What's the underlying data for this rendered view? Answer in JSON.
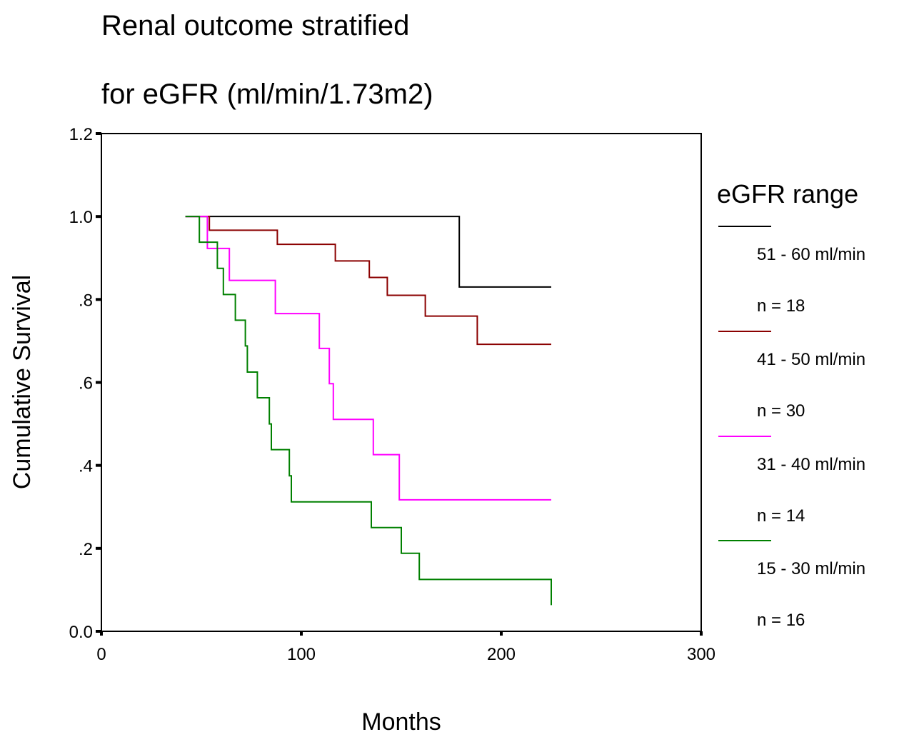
{
  "chart_data": {
    "type": "line",
    "title_lines": [
      "Renal outcome stratified",
      "for eGFR (ml/min/1.73m2)"
    ],
    "xlabel": "Months",
    "ylabel": "Cumulative Survival",
    "xlim": [
      0,
      300
    ],
    "ylim": [
      0,
      1.2
    ],
    "x_ticks": [
      0,
      100,
      200,
      300
    ],
    "x_tick_labels": [
      "0",
      "100",
      "200",
      "300"
    ],
    "y_ticks": [
      0,
      0.2,
      0.4,
      0.6,
      0.8,
      1.0,
      1.2
    ],
    "y_tick_labels": [
      "0.0",
      ".2",
      ".4",
      ".6",
      ".8",
      "1.0",
      "1.2"
    ],
    "grid": false,
    "legend": {
      "title": "eGFR range",
      "placement": "right",
      "entries": [
        {
          "label": "51 - 60 ml/min",
          "n_label": "n = 18",
          "color": "#000000"
        },
        {
          "label": "41 - 50 ml/min",
          "n_label": "n = 30",
          "color": "#8b0000"
        },
        {
          "label": "31 - 40  ml/min",
          "n_label": "n = 14",
          "color": "#ff00ff"
        },
        {
          "label": "15 - 30 ml/min",
          "n_label": "n = 16",
          "color": "#008000"
        }
      ]
    },
    "series": [
      {
        "name": "51 - 60 ml/min",
        "color": "#000000",
        "x": [
          42,
          179,
          225
        ],
        "y": [
          1.0,
          0.83,
          0.83
        ]
      },
      {
        "name": "41 - 50 ml/min",
        "color": "#8b0000",
        "x": [
          42,
          54,
          88,
          117,
          134,
          143,
          162,
          188,
          225
        ],
        "y": [
          1.0,
          0.967,
          0.933,
          0.893,
          0.853,
          0.81,
          0.76,
          0.692,
          0.692
        ]
      },
      {
        "name": "31 - 40  ml/min",
        "color": "#ff00ff",
        "x": [
          42,
          53,
          64,
          87,
          109,
          114,
          116,
          136,
          149,
          225
        ],
        "y": [
          1.0,
          0.923,
          0.846,
          0.766,
          0.682,
          0.597,
          0.511,
          0.426,
          0.317,
          0.317
        ]
      },
      {
        "name": "15 - 30 ml/min",
        "color": "#008000",
        "x": [
          42,
          49,
          58,
          61,
          67,
          72,
          73,
          78,
          84,
          85,
          94,
          95,
          135,
          150,
          159,
          225
        ],
        "y": [
          1.0,
          0.938,
          0.875,
          0.812,
          0.75,
          0.688,
          0.625,
          0.563,
          0.5,
          0.438,
          0.375,
          0.312,
          0.25,
          0.188,
          0.125,
          0.063
        ]
      }
    ]
  }
}
